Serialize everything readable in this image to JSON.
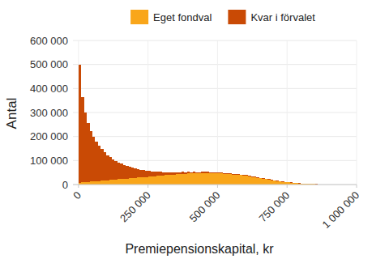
{
  "chart_data": {
    "type": "histogram",
    "x_label": "Premiepensionskapital, kr",
    "y_label": "Antal",
    "stacked": true,
    "grid": true,
    "legend": "top",
    "bins": [
      0,
      10000,
      20000,
      30000,
      40000,
      50000,
      60000,
      70000,
      80000,
      90000,
      100000,
      110000,
      120000,
      130000,
      140000,
      150000,
      160000,
      170000,
      180000,
      190000,
      200000,
      210000,
      220000,
      230000,
      240000,
      250000,
      260000,
      270000,
      280000,
      290000,
      300000,
      310000,
      320000,
      330000,
      340000,
      350000,
      360000,
      370000,
      380000,
      390000,
      400000,
      410000,
      420000,
      430000,
      440000,
      450000,
      460000,
      470000,
      480000,
      490000,
      500000,
      510000,
      520000,
      530000,
      540000,
      550000,
      560000,
      570000,
      580000,
      590000,
      600000,
      610000,
      620000,
      630000,
      640000,
      650000,
      660000,
      670000,
      680000,
      690000,
      700000,
      710000,
      720000,
      730000,
      740000,
      750000,
      760000,
      770000,
      780000,
      790000,
      800000,
      810000,
      820000,
      830000,
      840000,
      850000,
      860000,
      870000,
      880000,
      890000,
      900000
    ],
    "series": [
      {
        "name": "Eget fondval",
        "color": "#f9a61a",
        "values": [
          8000,
          9000,
          10000,
          11000,
          12000,
          13000,
          14000,
          15000,
          16000,
          17000,
          18000,
          19000,
          20000,
          21000,
          22000,
          23000,
          24000,
          25000,
          26000,
          27000,
          28000,
          29000,
          30000,
          31000,
          32000,
          33000,
          34000,
          35000,
          36000,
          37000,
          38000,
          39000,
          40000,
          41000,
          42000,
          43000,
          44000,
          45000,
          45000,
          46000,
          46000,
          47000,
          47000,
          47000,
          48000,
          48000,
          48000,
          48000,
          47000,
          47000,
          46000,
          46000,
          45000,
          44000,
          43000,
          42000,
          41000,
          40000,
          39000,
          38000,
          36000,
          34000,
          32000,
          30000,
          28000,
          26000,
          24000,
          22000,
          20000,
          18000,
          16000,
          14000,
          12000,
          11000,
          10000,
          9000,
          8000,
          7000,
          6000,
          5000,
          4000,
          3500,
          3000,
          2500,
          2000,
          1500,
          1000,
          800,
          500,
          300
        ]
      },
      {
        "name": "Kvar i förvalet",
        "color": "#c94a05",
        "values": [
          490000,
          355000,
          290000,
          245000,
          210000,
          185000,
          165000,
          148000,
          132000,
          118000,
          105000,
          95000,
          85000,
          77000,
          70000,
          63000,
          57000,
          52000,
          47000,
          43000,
          39000,
          35000,
          32000,
          29000,
          26000,
          23000,
          21000,
          19000,
          17000,
          15500,
          14000,
          12500,
          11500,
          10500,
          9500,
          8700,
          8000,
          7400,
          6800,
          6300,
          5900,
          5500,
          5200,
          4900,
          4700,
          4500,
          4300,
          4100,
          4000,
          3900,
          3800,
          3700,
          3600,
          3500,
          3400,
          3300,
          3200,
          3100,
          3000,
          2900,
          2800,
          2700,
          2600,
          2500,
          2400,
          2300,
          2200,
          2100,
          2000,
          1900,
          1800,
          1700,
          1600,
          1500,
          1400,
          1300,
          1200,
          1100,
          1000,
          900,
          800,
          700,
          600,
          500,
          400,
          300,
          200,
          100,
          100,
          0
        ]
      }
    ],
    "xlim": [
      -20000,
      1000000
    ],
    "xticks": [
      0,
      {
        "value": 250000,
        "label": "250 000"
      },
      {
        "value": 500000,
        "label": "500 000"
      },
      {
        "value": 750000,
        "label": "750 000"
      },
      {
        "value": 1000000,
        "label": "1 000 000"
      }
    ],
    "ylim": [
      0,
      600000
    ],
    "yticks": [
      0,
      {
        "value": 100000,
        "label": "100 000"
      },
      {
        "value": 200000,
        "label": "200 000"
      },
      {
        "value": 300000,
        "label": "300 000"
      },
      {
        "value": 400000,
        "label": "400 000"
      },
      {
        "value": 500000,
        "label": "500 000"
      },
      {
        "value": 600000,
        "label": "600 000"
      }
    ]
  }
}
